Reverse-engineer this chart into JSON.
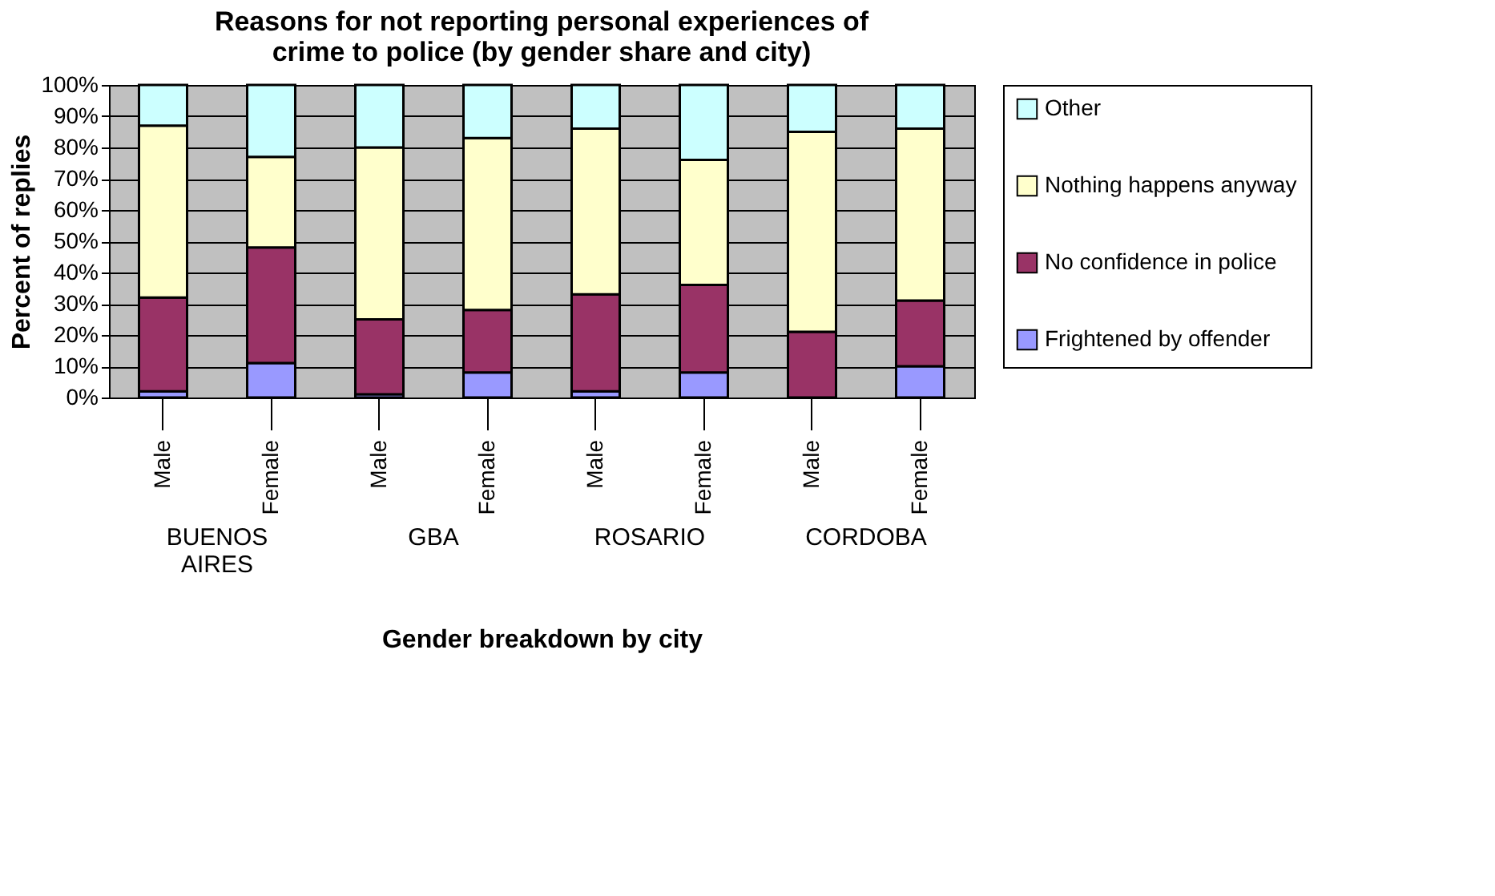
{
  "chart_data": {
    "type": "bar",
    "stacked": true,
    "title": "Reasons for not reporting personal experiences of crime to police (by gender share and city)",
    "xlabel": "Gender breakdown by city",
    "ylabel": "Percent of replies",
    "categories": [
      "Male",
      "Female",
      "Male",
      "Female",
      "Male",
      "Female",
      "Male",
      "Female"
    ],
    "annotations": [
      "BUENOS AIRES",
      "GBA",
      "ROSARIO",
      "CORDOBA"
    ],
    "series": [
      {
        "name": "Frightened by offender",
        "color": "#9999ff",
        "values": [
          2,
          11,
          1,
          8,
          2,
          8,
          0,
          10
        ]
      },
      {
        "name": "No confidence in police",
        "color": "#993366",
        "values": [
          30,
          37,
          24,
          20,
          31,
          28,
          21,
          21
        ]
      },
      {
        "name": "Nothing happens anyway",
        "color": "#ffffcc",
        "values": [
          55,
          29,
          55,
          55,
          53,
          40,
          64,
          55
        ]
      },
      {
        "name": "Other",
        "color": "#ccffff",
        "values": [
          13,
          23,
          20,
          17,
          14,
          24,
          15,
          14
        ]
      }
    ],
    "ylim": [
      0,
      100
    ],
    "yticks": [
      {
        "value": 0,
        "label": "0%"
      },
      {
        "value": 10,
        "label": "10%"
      },
      {
        "value": 20,
        "label": "20%"
      },
      {
        "value": 30,
        "label": "30%"
      },
      {
        "value": 40,
        "label": "40%"
      },
      {
        "value": 50,
        "label": "50%"
      },
      {
        "value": 60,
        "label": "60%"
      },
      {
        "value": 70,
        "label": "70%"
      },
      {
        "value": 80,
        "label": "80%"
      },
      {
        "value": 90,
        "label": "90%"
      },
      {
        "value": 100,
        "label": "100%"
      }
    ],
    "grid": "y",
    "legend": "right"
  }
}
